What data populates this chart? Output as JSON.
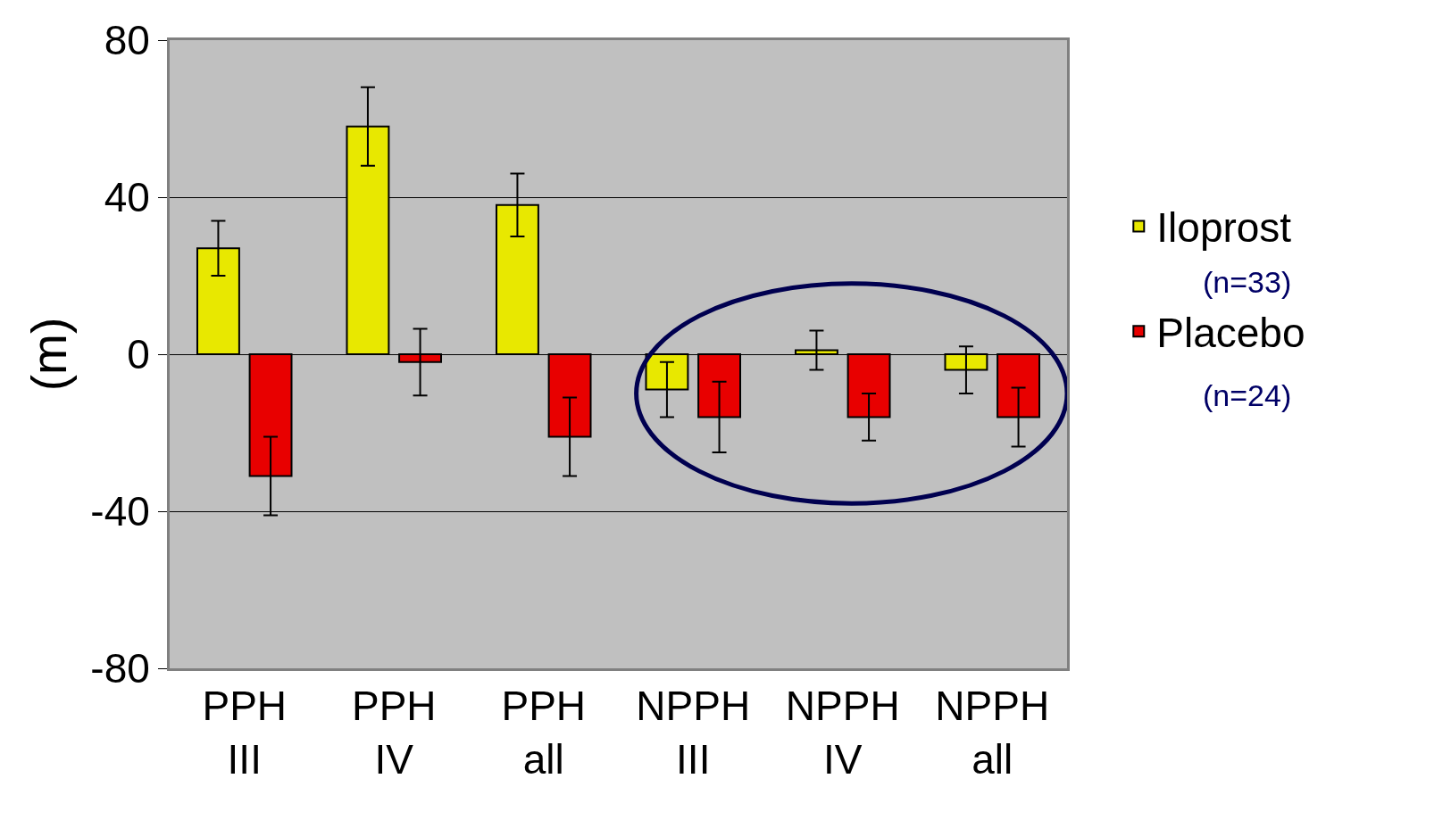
{
  "chart_data": {
    "type": "bar",
    "ylabel": "(m)",
    "categories": [
      "PPH III",
      "PPH IV",
      "PPH all",
      "NPPH III",
      "NPPH IV",
      "NPPH all"
    ],
    "series": [
      {
        "name": "Iloprost",
        "color": "#e8e800",
        "values": [
          27,
          58,
          38,
          -9,
          1,
          -4
        ],
        "errors": [
          7,
          10,
          8,
          7,
          5,
          6
        ]
      },
      {
        "name": "Placebo",
        "color": "#e80000",
        "values": [
          -31,
          -2,
          -21,
          -16,
          -16,
          -16
        ],
        "errors": [
          10,
          8.5,
          10,
          9,
          6,
          7.5
        ]
      }
    ],
    "ylim": [
      -80,
      80
    ],
    "yticks": [
      -80,
      -40,
      0,
      40,
      80
    ],
    "grid": "y",
    "legend": "right",
    "annotations": [
      "(n=33)",
      "(n=24)"
    ]
  }
}
